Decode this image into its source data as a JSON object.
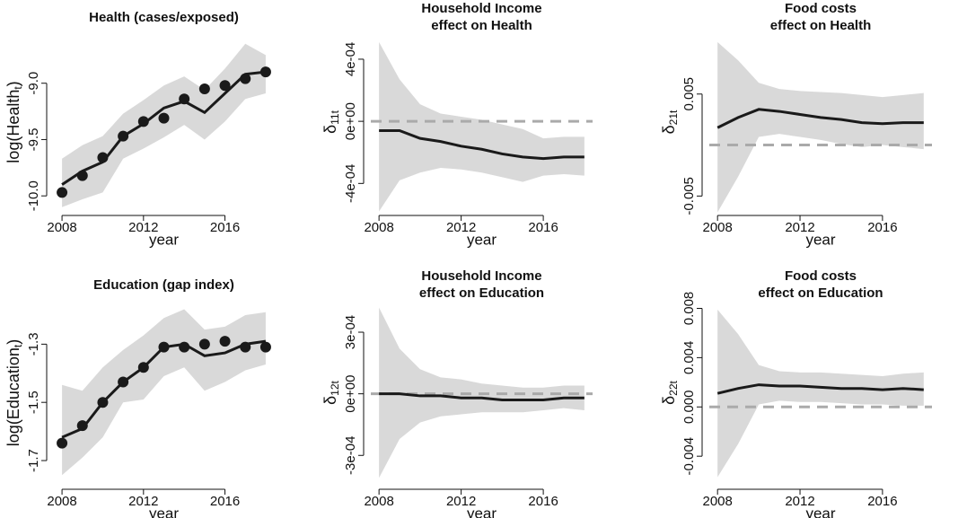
{
  "chart_data": [
    {
      "type": "line",
      "title": "Health (cases/exposed)",
      "ylabel": [
        "log(Health",
        "t",
        ")"
      ],
      "xlabel": "year",
      "x": [
        2008,
        2009,
        2010,
        2011,
        2012,
        2013,
        2014,
        2015,
        2016,
        2017,
        2018
      ],
      "estimate": [
        -9.9,
        -9.78,
        -9.7,
        -9.47,
        -9.36,
        -9.22,
        -9.16,
        -9.26,
        -9.09,
        -8.92,
        -8.9
      ],
      "observed": [
        -9.97,
        -9.82,
        -9.66,
        -9.47,
        -9.34,
        -9.31,
        -9.14,
        -9.05,
        -9.02,
        -8.96,
        -8.9
      ],
      "lower": [
        -10.1,
        -10.03,
        -9.97,
        -9.67,
        -9.58,
        -9.48,
        -9.37,
        -9.5,
        -9.34,
        -9.14,
        -9.09
      ],
      "upper": [
        -9.67,
        -9.55,
        -9.47,
        -9.27,
        -9.15,
        -9.02,
        -8.94,
        -9.06,
        -8.87,
        -8.65,
        -8.75
      ],
      "xlim": [
        2007.6,
        2018.4
      ],
      "ylim": [
        -10.11,
        -8.58
      ],
      "xticks": [
        2008,
        2012,
        2016
      ],
      "yticks": [
        {
          "value": -10,
          "label": "-10.0"
        },
        -9.5,
        {
          "value": -9,
          "label": "-9.0"
        }
      ],
      "line_color": "#1a1a1a",
      "band_color": "#d9d9d9",
      "point_color": "#1a1a1a"
    },
    {
      "type": "line",
      "title": [
        "Household Income",
        "effect on Health"
      ],
      "ylabel": [
        "δ",
        "11t"
      ],
      "xlabel": "year",
      "x": [
        2008,
        2009,
        2010,
        2011,
        2012,
        2013,
        2014,
        2015,
        2016,
        2017,
        2018
      ],
      "estimate": [
        -6e-05,
        -6e-05,
        -0.00011,
        -0.00013,
        -0.00016,
        -0.00018,
        -0.00021,
        -0.00023,
        -0.00024,
        -0.00023,
        -0.00023
      ],
      "lower": [
        -0.00058,
        -0.00038,
        -0.00033,
        -0.0003,
        -0.00031,
        -0.00033,
        -0.00036,
        -0.00039,
        -0.00035,
        -0.00034,
        -0.00035
      ],
      "upper": [
        0.00051,
        0.00027,
        0.00011,
        5e-05,
        3e-05,
        1e-05,
        -2e-05,
        -5e-05,
        -0.00011,
        -0.0001,
        -0.0001
      ],
      "hline": 0,
      "xlim": [
        2007.6,
        2018.4
      ],
      "ylim": [
        -0.00056,
        0.00055
      ],
      "xticks": [
        2008,
        2012,
        2016
      ],
      "yticks": [
        {
          "value": -0.0004,
          "label": "-4e-04"
        },
        {
          "value": 0,
          "label": "0e+00"
        },
        {
          "value": 0.0004,
          "label": "4e-04"
        }
      ],
      "line_color": "#1a1a1a",
      "band_color": "#d9d9d9",
      "hline_color": "#aaaaaa"
    },
    {
      "type": "line",
      "title": [
        "Food costs",
        "effect on Health"
      ],
      "ylabel": [
        "δ",
        "21t"
      ],
      "xlabel": "year",
      "x": [
        2008,
        2009,
        2010,
        2011,
        2012,
        2013,
        2014,
        2015,
        2016,
        2017,
        2018
      ],
      "estimate": [
        0.0017,
        0.0027,
        0.0035,
        0.0033,
        0.003,
        0.0027,
        0.0025,
        0.0022,
        0.0021,
        0.0022,
        0.0022
      ],
      "lower": [
        -0.0066,
        -0.0031,
        0.0008,
        0.0011,
        0.0008,
        0.0005,
        0.0001,
        -0.0002,
        0,
        -0.0002,
        -0.0004
      ],
      "upper": [
        0.0101,
        0.0083,
        0.0061,
        0.0055,
        0.0053,
        0.0052,
        0.0051,
        0.0049,
        0.0047,
        0.0049,
        0.0051
      ],
      "hline": 0,
      "xlim": [
        2007.6,
        2018.4
      ],
      "ylim": [
        -0.0062,
        0.0107
      ],
      "xticks": [
        2008,
        2012,
        2016
      ],
      "yticks": [
        -0.005,
        0.005
      ],
      "line_color": "#1a1a1a",
      "band_color": "#d9d9d9",
      "hline_color": "#aaaaaa"
    },
    {
      "type": "line",
      "title": "Education (gap index)",
      "ylabel": [
        "log(Education",
        "t",
        ")"
      ],
      "xlabel": "year",
      "x": [
        2008,
        2009,
        2010,
        2011,
        2012,
        2013,
        2014,
        2015,
        2016,
        2017,
        2018
      ],
      "estimate": [
        -1.62,
        -1.59,
        -1.5,
        -1.43,
        -1.38,
        -1.31,
        -1.3,
        -1.34,
        -1.33,
        -1.3,
        -1.29
      ],
      "observed": [
        -1.64,
        -1.58,
        -1.5,
        -1.43,
        -1.38,
        -1.31,
        -1.31,
        -1.3,
        -1.29,
        -1.31,
        -1.31
      ],
      "lower": [
        -1.75,
        -1.69,
        -1.62,
        -1.5,
        -1.49,
        -1.41,
        -1.38,
        -1.46,
        -1.43,
        -1.39,
        -1.37
      ],
      "upper": [
        -1.44,
        -1.46,
        -1.38,
        -1.32,
        -1.27,
        -1.21,
        -1.18,
        -1.25,
        -1.24,
        -1.2,
        -1.19
      ],
      "xlim": [
        2007.6,
        2018.4
      ],
      "ylim": [
        -1.774,
        -1.16
      ],
      "xticks": [
        2008,
        2012,
        2016
      ],
      "yticks": [
        -1.7,
        -1.5,
        -1.3
      ],
      "line_color": "#1a1a1a",
      "band_color": "#d9d9d9",
      "point_color": "#1a1a1a"
    },
    {
      "type": "line",
      "title": [
        "Household Income",
        "effect on Education"
      ],
      "ylabel": [
        "δ",
        "12t"
      ],
      "xlabel": "year",
      "x": [
        2008,
        2009,
        2010,
        2011,
        2012,
        2013,
        2014,
        2015,
        2016,
        2017,
        2018
      ],
      "estimate": [
        0,
        0,
        -1e-05,
        -1e-05,
        -2e-05,
        -2e-05,
        -3e-05,
        -3e-05,
        -3e-05,
        -2e-05,
        -2e-05
      ],
      "lower": [
        -0.00041,
        -0.00022,
        -0.00014,
        -0.00011,
        -0.0001,
        -9e-05,
        -9e-05,
        -9e-05,
        -8e-05,
        -7e-05,
        -8e-05
      ],
      "upper": [
        0.00042,
        0.00022,
        0.00012,
        8e-05,
        7e-05,
        5e-05,
        4e-05,
        3e-05,
        3e-05,
        4e-05,
        4e-05
      ],
      "hline": 0,
      "xlim": [
        2007.6,
        2018.4
      ],
      "ylim": [
        -0.00043,
        0.00044
      ],
      "xticks": [
        2008,
        2012,
        2016
      ],
      "yticks": [
        {
          "value": -0.0003,
          "label": "-3e-04"
        },
        {
          "value": 0,
          "label": "0e+00"
        },
        {
          "value": 0.0003,
          "label": "3e-04"
        }
      ],
      "line_color": "#1a1a1a",
      "band_color": "#d9d9d9",
      "hline_color": "#aaaaaa"
    },
    {
      "type": "line",
      "title": [
        "Food costs",
        "effect on Education"
      ],
      "ylabel": [
        "δ",
        "22t"
      ],
      "xlabel": "year",
      "x": [
        2008,
        2009,
        2010,
        2011,
        2012,
        2013,
        2014,
        2015,
        2016,
        2017,
        2018
      ],
      "estimate": [
        0.0011,
        0.0015,
        0.0018,
        0.0017,
        0.0017,
        0.0016,
        0.0015,
        0.0015,
        0.0014,
        0.0015,
        0.0014
      ],
      "lower": [
        -0.0057,
        -0.003,
        0.0002,
        0.0005,
        0.0004,
        0.0004,
        0.0003,
        0.0002,
        0.0002,
        0.0001,
        0.0001
      ],
      "upper": [
        0.0079,
        0.0059,
        0.0034,
        0.0029,
        0.0028,
        0.0028,
        0.0027,
        0.0026,
        0.0025,
        0.0027,
        0.0028
      ],
      "hline": 0,
      "xlim": [
        2007.6,
        2018.4
      ],
      "ylim": [
        -0.0061,
        0.0084
      ],
      "xticks": [
        2008,
        2012,
        2016
      ],
      "yticks": [
        -0.004,
        {
          "value": 0,
          "label": "0.000"
        },
        0.004,
        0.008
      ],
      "line_color": "#1a1a1a",
      "band_color": "#d9d9d9",
      "hline_color": "#aaaaaa"
    }
  ]
}
